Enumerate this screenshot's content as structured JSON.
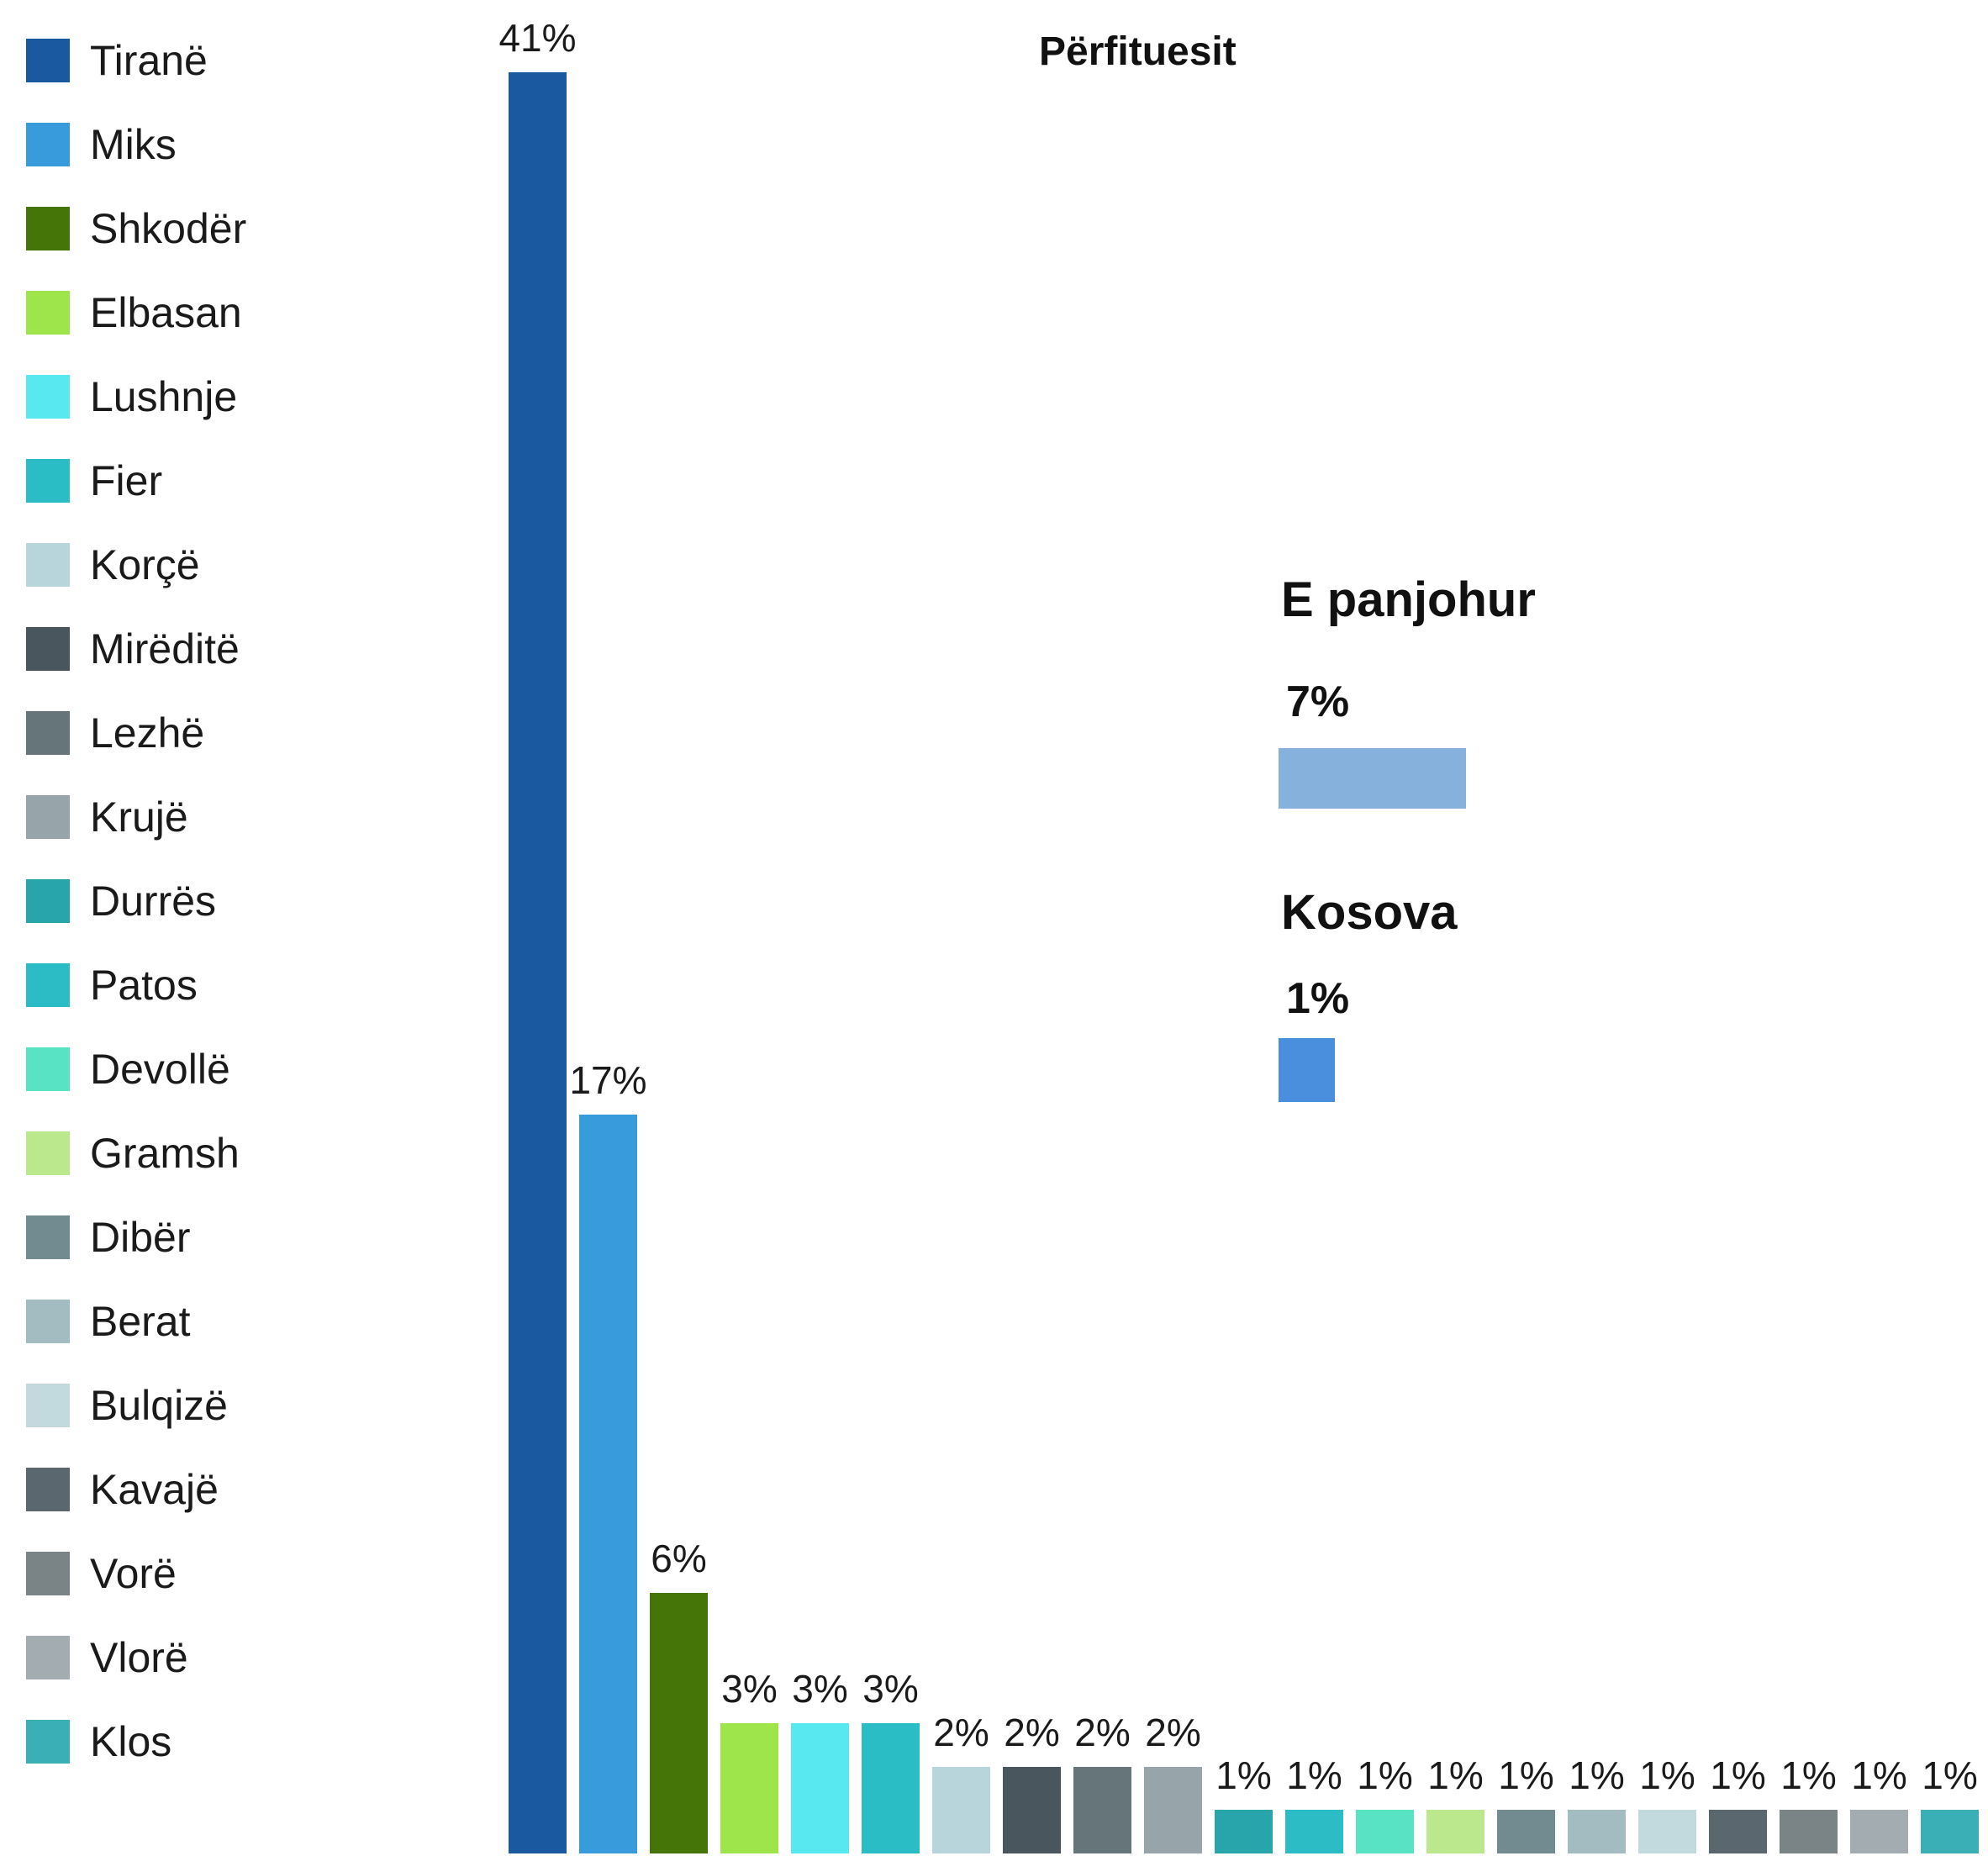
{
  "chart_data": {
    "type": "bar",
    "title": "Përfituesit",
    "categories": [
      "Tiranë",
      "Miks",
      "Shkodër",
      "Elbasan",
      "Lushnje",
      "Fier",
      "Korçë",
      "Mirëditë",
      "Lezhë",
      "Krujë",
      "Durrës",
      "Patos",
      "Devollë",
      "Gramsh",
      "Dibër",
      "Berat",
      "Bulqizë",
      "Kavajë",
      "Vorë",
      "Vlorë",
      "Klos"
    ],
    "values": [
      41,
      17,
      6,
      3,
      3,
      3,
      2,
      2,
      2,
      2,
      1,
      1,
      1,
      1,
      1,
      1,
      1,
      1,
      1,
      1,
      1
    ],
    "value_labels": [
      "41%",
      "17%",
      "6%",
      "3%",
      "3%",
      "3%",
      "2%",
      "2%",
      "2%",
      "2%",
      "1%",
      "1%",
      "1%",
      "1%",
      "1%",
      "1%",
      "1%",
      "1%",
      "1%",
      "1%",
      "1%"
    ],
    "colors": [
      "#1a589f",
      "#389bdb",
      "#457508",
      "#9de54a",
      "#58e8f0",
      "#2abdc5",
      "#b7d5da",
      "#4a565d",
      "#66757a",
      "#97a4aa",
      "#28a5ab",
      "#2cbcc5",
      "#57e3c4",
      "#bce88d",
      "#728b91",
      "#a2bcc1",
      "#c2dade",
      "#5a676e",
      "#7a8487",
      "#a3acb0",
      "#3ab0b6"
    ],
    "ylim": [
      0,
      41
    ],
    "legend_position": "left",
    "grid": false,
    "extra": [
      {
        "title": "E panjohur",
        "value": 7,
        "label": "7%",
        "color": "#86b1dc"
      },
      {
        "title": "Kosova",
        "value": 1,
        "label": "1%",
        "color": "#4a8fde"
      }
    ]
  }
}
